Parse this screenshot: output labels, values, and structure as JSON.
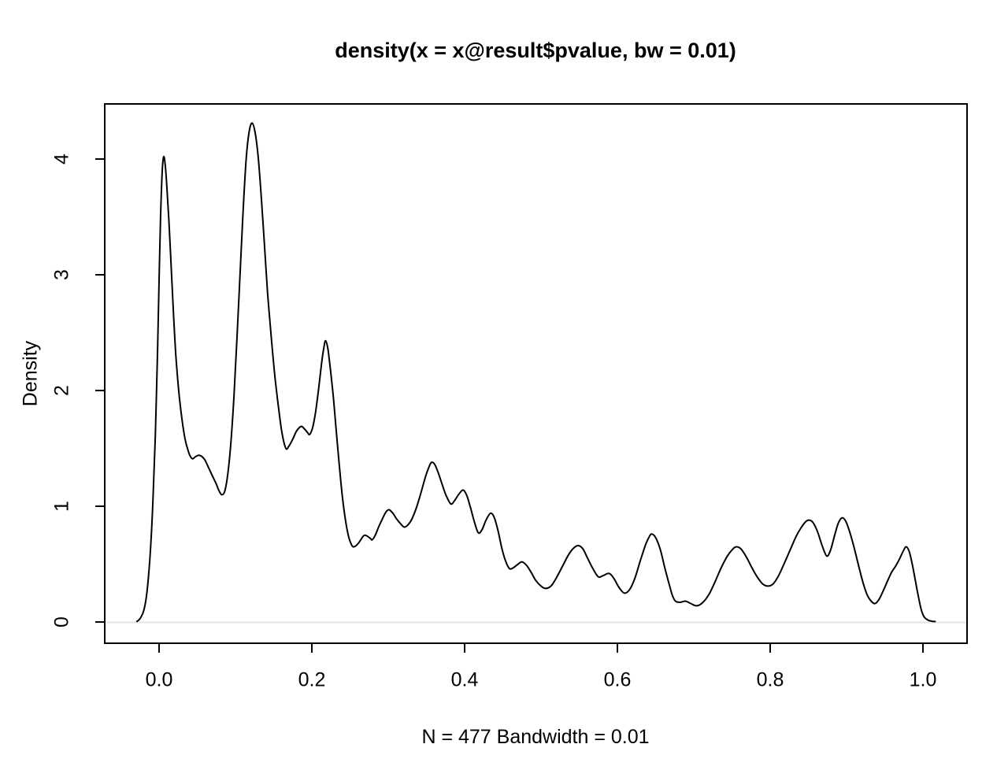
{
  "window": {
    "background": "#ffffff"
  },
  "chart_data": {
    "type": "line",
    "title": "density(x = x@result$pvalue, bw = 0.01)",
    "xlabel": "N = 477 Bandwidth = 0.01",
    "ylabel": "Density",
    "N": 477,
    "bandwidth": 0.01,
    "xlim": [
      -0.071,
      1.058
    ],
    "ylim": [
      -0.18,
      4.48
    ],
    "x_ticks": [
      0.0,
      0.2,
      0.4,
      0.6,
      0.8,
      1.0
    ],
    "x_tick_labels": [
      "0.0",
      "0.2",
      "0.4",
      "0.6",
      "0.8",
      "1.0"
    ],
    "y_ticks": [
      0,
      1,
      2,
      3,
      4
    ],
    "y_tick_labels": [
      "0",
      "1",
      "2",
      "3",
      "4"
    ],
    "grid": false,
    "legend": null,
    "curve_color": "#000000",
    "box_color": "#000000",
    "zero_line": {
      "y": 0,
      "color": "#e8e8e8"
    },
    "series": [
      {
        "name": "density of x@result$pvalue",
        "color": "#000000",
        "points": [
          [
            -0.029,
            0.005
          ],
          [
            -0.026,
            0.02
          ],
          [
            -0.023,
            0.05
          ],
          [
            -0.02,
            0.1
          ],
          [
            -0.017,
            0.2
          ],
          [
            -0.014,
            0.38
          ],
          [
            -0.011,
            0.65
          ],
          [
            -0.008,
            1.05
          ],
          [
            -0.005,
            1.6
          ],
          [
            -0.002,
            2.35
          ],
          [
            0.0,
            2.95
          ],
          [
            0.002,
            3.5
          ],
          [
            0.004,
            3.88
          ],
          [
            0.006,
            4.02
          ],
          [
            0.008,
            3.95
          ],
          [
            0.01,
            3.78
          ],
          [
            0.013,
            3.45
          ],
          [
            0.016,
            3.05
          ],
          [
            0.019,
            2.65
          ],
          [
            0.022,
            2.3
          ],
          [
            0.026,
            1.98
          ],
          [
            0.03,
            1.75
          ],
          [
            0.034,
            1.58
          ],
          [
            0.038,
            1.48
          ],
          [
            0.041,
            1.43
          ],
          [
            0.044,
            1.41
          ],
          [
            0.048,
            1.43
          ],
          [
            0.052,
            1.44
          ],
          [
            0.056,
            1.43
          ],
          [
            0.06,
            1.4
          ],
          [
            0.065,
            1.33
          ],
          [
            0.07,
            1.26
          ],
          [
            0.075,
            1.19
          ],
          [
            0.078,
            1.14
          ],
          [
            0.082,
            1.1
          ],
          [
            0.086,
            1.13
          ],
          [
            0.09,
            1.28
          ],
          [
            0.094,
            1.55
          ],
          [
            0.098,
            1.95
          ],
          [
            0.102,
            2.45
          ],
          [
            0.106,
            3.0
          ],
          [
            0.11,
            3.55
          ],
          [
            0.114,
            4.0
          ],
          [
            0.118,
            4.24
          ],
          [
            0.122,
            4.31
          ],
          [
            0.126,
            4.22
          ],
          [
            0.13,
            4.0
          ],
          [
            0.134,
            3.65
          ],
          [
            0.138,
            3.25
          ],
          [
            0.142,
            2.85
          ],
          [
            0.147,
            2.45
          ],
          [
            0.152,
            2.1
          ],
          [
            0.157,
            1.82
          ],
          [
            0.161,
            1.63
          ],
          [
            0.166,
            1.5
          ],
          [
            0.17,
            1.52
          ],
          [
            0.175,
            1.58
          ],
          [
            0.18,
            1.65
          ],
          [
            0.186,
            1.69
          ],
          [
            0.19,
            1.67
          ],
          [
            0.194,
            1.64
          ],
          [
            0.197,
            1.62
          ],
          [
            0.201,
            1.68
          ],
          [
            0.205,
            1.82
          ],
          [
            0.209,
            2.02
          ],
          [
            0.213,
            2.25
          ],
          [
            0.216,
            2.38
          ],
          [
            0.218,
            2.43
          ],
          [
            0.221,
            2.36
          ],
          [
            0.224,
            2.2
          ],
          [
            0.228,
            1.95
          ],
          [
            0.232,
            1.65
          ],
          [
            0.236,
            1.35
          ],
          [
            0.24,
            1.08
          ],
          [
            0.244,
            0.88
          ],
          [
            0.248,
            0.74
          ],
          [
            0.251,
            0.68
          ],
          [
            0.254,
            0.65
          ],
          [
            0.258,
            0.66
          ],
          [
            0.262,
            0.69
          ],
          [
            0.266,
            0.73
          ],
          [
            0.269,
            0.75
          ],
          [
            0.273,
            0.74
          ],
          [
            0.277,
            0.72
          ],
          [
            0.279,
            0.71
          ],
          [
            0.283,
            0.75
          ],
          [
            0.288,
            0.83
          ],
          [
            0.293,
            0.9
          ],
          [
            0.297,
            0.95
          ],
          [
            0.301,
            0.97
          ],
          [
            0.306,
            0.94
          ],
          [
            0.311,
            0.89
          ],
          [
            0.316,
            0.85
          ],
          [
            0.321,
            0.82
          ],
          [
            0.326,
            0.84
          ],
          [
            0.331,
            0.89
          ],
          [
            0.337,
            0.99
          ],
          [
            0.343,
            1.12
          ],
          [
            0.349,
            1.26
          ],
          [
            0.354,
            1.35
          ],
          [
            0.357,
            1.38
          ],
          [
            0.361,
            1.36
          ],
          [
            0.366,
            1.28
          ],
          [
            0.371,
            1.18
          ],
          [
            0.376,
            1.09
          ],
          [
            0.382,
            1.02
          ],
          [
            0.387,
            1.05
          ],
          [
            0.392,
            1.1
          ],
          [
            0.398,
            1.14
          ],
          [
            0.403,
            1.09
          ],
          [
            0.408,
            0.98
          ],
          [
            0.413,
            0.86
          ],
          [
            0.418,
            0.77
          ],
          [
            0.423,
            0.8
          ],
          [
            0.428,
            0.88
          ],
          [
            0.434,
            0.94
          ],
          [
            0.439,
            0.9
          ],
          [
            0.444,
            0.78
          ],
          [
            0.449,
            0.63
          ],
          [
            0.454,
            0.52
          ],
          [
            0.459,
            0.46
          ],
          [
            0.464,
            0.47
          ],
          [
            0.47,
            0.5
          ],
          [
            0.475,
            0.52
          ],
          [
            0.481,
            0.49
          ],
          [
            0.487,
            0.43
          ],
          [
            0.493,
            0.36
          ],
          [
            0.5,
            0.31
          ],
          [
            0.506,
            0.29
          ],
          [
            0.513,
            0.31
          ],
          [
            0.52,
            0.38
          ],
          [
            0.528,
            0.48
          ],
          [
            0.536,
            0.58
          ],
          [
            0.543,
            0.64
          ],
          [
            0.549,
            0.66
          ],
          [
            0.555,
            0.63
          ],
          [
            0.561,
            0.55
          ],
          [
            0.568,
            0.46
          ],
          [
            0.575,
            0.39
          ],
          [
            0.581,
            0.4
          ],
          [
            0.589,
            0.42
          ],
          [
            0.595,
            0.38
          ],
          [
            0.602,
            0.3
          ],
          [
            0.609,
            0.25
          ],
          [
            0.616,
            0.28
          ],
          [
            0.623,
            0.38
          ],
          [
            0.63,
            0.53
          ],
          [
            0.637,
            0.67
          ],
          [
            0.642,
            0.74
          ],
          [
            0.645,
            0.76
          ],
          [
            0.65,
            0.73
          ],
          [
            0.656,
            0.63
          ],
          [
            0.662,
            0.47
          ],
          [
            0.668,
            0.32
          ],
          [
            0.672,
            0.23
          ],
          [
            0.676,
            0.18
          ],
          [
            0.682,
            0.17
          ],
          [
            0.689,
            0.18
          ],
          [
            0.696,
            0.16
          ],
          [
            0.704,
            0.14
          ],
          [
            0.712,
            0.17
          ],
          [
            0.72,
            0.24
          ],
          [
            0.728,
            0.35
          ],
          [
            0.736,
            0.47
          ],
          [
            0.744,
            0.57
          ],
          [
            0.751,
            0.63
          ],
          [
            0.756,
            0.65
          ],
          [
            0.762,
            0.63
          ],
          [
            0.769,
            0.56
          ],
          [
            0.776,
            0.47
          ],
          [
            0.783,
            0.39
          ],
          [
            0.79,
            0.33
          ],
          [
            0.797,
            0.31
          ],
          [
            0.804,
            0.33
          ],
          [
            0.811,
            0.4
          ],
          [
            0.818,
            0.5
          ],
          [
            0.826,
            0.62
          ],
          [
            0.834,
            0.74
          ],
          [
            0.841,
            0.82
          ],
          [
            0.847,
            0.87
          ],
          [
            0.851,
            0.88
          ],
          [
            0.856,
            0.86
          ],
          [
            0.862,
            0.78
          ],
          [
            0.868,
            0.66
          ],
          [
            0.874,
            0.57
          ],
          [
            0.879,
            0.62
          ],
          [
            0.884,
            0.74
          ],
          [
            0.889,
            0.85
          ],
          [
            0.894,
            0.9
          ],
          [
            0.899,
            0.87
          ],
          [
            0.904,
            0.78
          ],
          [
            0.91,
            0.64
          ],
          [
            0.916,
            0.48
          ],
          [
            0.922,
            0.33
          ],
          [
            0.928,
            0.22
          ],
          [
            0.936,
            0.16
          ],
          [
            0.942,
            0.19
          ],
          [
            0.948,
            0.27
          ],
          [
            0.954,
            0.36
          ],
          [
            0.959,
            0.43
          ],
          [
            0.964,
            0.48
          ],
          [
            0.969,
            0.54
          ],
          [
            0.974,
            0.61
          ],
          [
            0.978,
            0.65
          ],
          [
            0.982,
            0.61
          ],
          [
            0.986,
            0.5
          ],
          [
            0.99,
            0.36
          ],
          [
            0.994,
            0.22
          ],
          [
            0.998,
            0.1
          ],
          [
            1.002,
            0.04
          ],
          [
            1.007,
            0.015
          ],
          [
            1.012,
            0.006
          ],
          [
            1.016,
            0.004
          ]
        ]
      }
    ]
  }
}
